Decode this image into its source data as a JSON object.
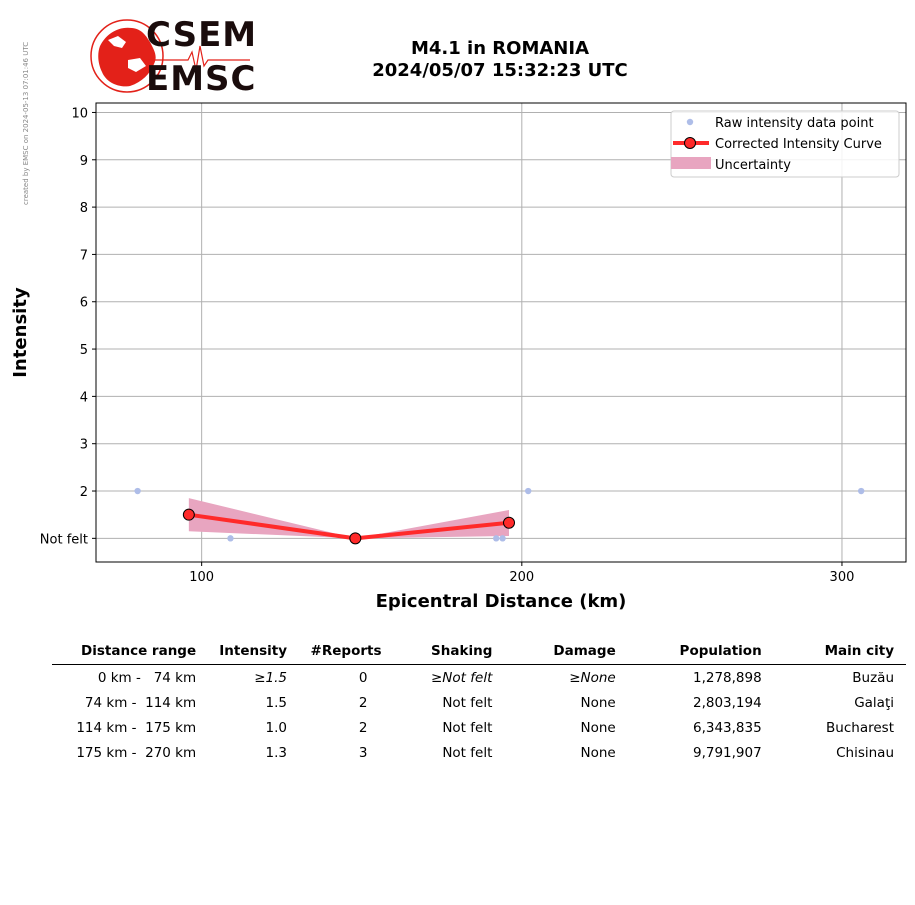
{
  "credit": "created by EMSC on 2024-05-13 07:01:46 UTC",
  "logo": {
    "line1": "CSEM",
    "line2": "EMSC",
    "color": "#e32119"
  },
  "title": {
    "line1": "M4.1 in ROMANIA",
    "line2": "2024/05/07 15:32:23 UTC"
  },
  "chart_data": {
    "type": "line",
    "xlabel": "Epicentral Distance (km)",
    "ylabel": "Intensity",
    "xlim": [
      67,
      320
    ],
    "ylim": [
      0.5,
      10.2
    ],
    "x_ticks": [
      100,
      200,
      300
    ],
    "y_ticks": [
      {
        "value": 1,
        "label": "Not felt"
      },
      {
        "value": 2,
        "label": "2"
      },
      {
        "value": 3,
        "label": "3"
      },
      {
        "value": 4,
        "label": "4"
      },
      {
        "value": 5,
        "label": "5"
      },
      {
        "value": 6,
        "label": "6"
      },
      {
        "value": 7,
        "label": "7"
      },
      {
        "value": 8,
        "label": "8"
      },
      {
        "value": 9,
        "label": "9"
      },
      {
        "value": 10,
        "label": "10"
      }
    ],
    "grid": true,
    "legend_position": "top-right",
    "legend": [
      "Raw intensity data point",
      "Corrected Intensity Curve",
      "Uncertainty"
    ],
    "raw_points": [
      {
        "x": 80,
        "y": 2
      },
      {
        "x": 109,
        "y": 1
      },
      {
        "x": 192,
        "y": 1
      },
      {
        "x": 194,
        "y": 1
      },
      {
        "x": 202,
        "y": 2
      },
      {
        "x": 306,
        "y": 2
      }
    ],
    "corrected_curve": [
      {
        "x": 96,
        "y": 1.5
      },
      {
        "x": 148,
        "y": 1.0
      },
      {
        "x": 196,
        "y": 1.33
      }
    ],
    "uncertainty": {
      "x": [
        96,
        148,
        196
      ],
      "lower": [
        1.15,
        1.0,
        1.05
      ],
      "upper": [
        1.85,
        1.0,
        1.6
      ]
    },
    "colors": {
      "raw": "#aebde8",
      "curve": "#ff2a2a",
      "marker_edge": "#000000",
      "band": "#e8a5c0",
      "grid": "#b0b0b0"
    }
  },
  "table": {
    "headers": [
      "Distance range",
      "Intensity",
      "#Reports",
      "Shaking",
      "Damage",
      "Population",
      "Main city"
    ],
    "rows": [
      {
        "range": "0 km -   74 km",
        "intensity": "≥1.5",
        "reports": "0",
        "shaking": "≥Not felt",
        "damage": "≥None",
        "population": "1,278,898",
        "city": "Buzău"
      },
      {
        "range": "74 km -  114 km",
        "intensity": "1.5",
        "reports": "2",
        "shaking": "Not felt",
        "damage": "None",
        "population": "2,803,194",
        "city": "Galaţi"
      },
      {
        "range": "114 km -  175 km",
        "intensity": "1.0",
        "reports": "2",
        "shaking": "Not felt",
        "damage": "None",
        "population": "6,343,835",
        "city": "Bucharest"
      },
      {
        "range": "175 km -  270 km",
        "intensity": "1.3",
        "reports": "3",
        "shaking": "Not felt",
        "damage": "None",
        "population": "9,791,907",
        "city": "Chisinau"
      }
    ]
  }
}
